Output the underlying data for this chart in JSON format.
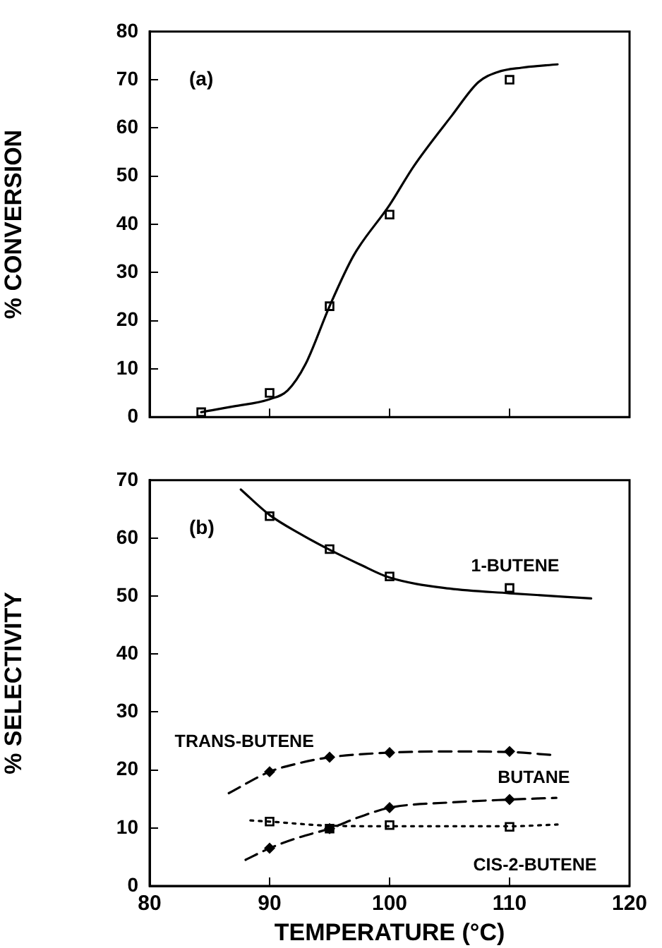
{
  "chart_data": [
    {
      "type": "line",
      "ylabel": "% CONVERSION",
      "annotations": [
        "(a)"
      ],
      "xlim": [
        80,
        120
      ],
      "xticks": [
        80,
        90,
        100,
        110,
        120
      ],
      "ylim": [
        0,
        80
      ],
      "yticks": [
        0,
        10,
        20,
        30,
        40,
        50,
        60,
        70,
        80
      ],
      "tick_labels": "y",
      "grid": false,
      "legend": false,
      "series": [
        {
          "type": "line",
          "color": "#000000",
          "line_style": "solid",
          "marker": "none",
          "x": [
            84.3,
            87,
            90,
            91.5,
            93,
            95,
            97,
            100,
            102,
            105.2,
            107.4,
            109,
            111,
            114
          ],
          "values": [
            1,
            2.2,
            3.7,
            5.5,
            11,
            23,
            33.5,
            44,
            52,
            62.6,
            69.5,
            71.6,
            72.5,
            73.2
          ]
        },
        {
          "type": "scatter",
          "color": "#000000",
          "marker": "square",
          "x": [
            84.3,
            90,
            95,
            100,
            110
          ],
          "values": [
            1,
            5,
            23,
            42,
            70
          ]
        }
      ]
    },
    {
      "type": "line",
      "xlabel": "TEMPERATURE (°C)",
      "ylabel": "% SELECTIVITY",
      "annotations": [
        "(b)"
      ],
      "xlim": [
        80,
        120
      ],
      "xticks": [
        80,
        90,
        100,
        110,
        120
      ],
      "ylim": [
        0,
        70
      ],
      "yticks": [
        0,
        10,
        20,
        30,
        40,
        50,
        60,
        70
      ],
      "grid": false,
      "legend": false,
      "series": [
        {
          "type": "line",
          "name": "1-BUTENE",
          "color": "#000000",
          "line_style": "solid",
          "marker": "none",
          "x": [
            87.6,
            90,
            92.5,
            95,
            97.5,
            100,
            105,
            110,
            116.8
          ],
          "values": [
            68.4,
            64,
            60.8,
            58,
            55.5,
            53.2,
            51.3,
            50.5,
            49.6
          ]
        },
        {
          "type": "scatter",
          "color": "#000000",
          "marker": "square",
          "x": [
            90,
            95,
            100,
            110
          ],
          "values": [
            63.8,
            58.1,
            53.4,
            51.4
          ]
        },
        {
          "type": "line",
          "name": "TRANS-BUTENE",
          "color": "#000000",
          "line_style": "dashed",
          "marker": "none",
          "x": [
            86.6,
            90,
            92.5,
            95,
            100,
            105,
            110,
            113.5
          ],
          "values": [
            16,
            19.7,
            21.2,
            22.2,
            23,
            23.2,
            23.1,
            22.6
          ]
        },
        {
          "type": "scatter",
          "color": "#000000",
          "marker": "diamond",
          "x": [
            90,
            95,
            100,
            110
          ],
          "values": [
            19.7,
            22.2,
            23,
            23.2
          ]
        },
        {
          "type": "line",
          "name": "BUTANE",
          "color": "#000000",
          "line_style": "dashed",
          "marker": "none",
          "x": [
            88,
            90,
            92.5,
            95,
            97.5,
            100,
            105,
            110,
            113.9
          ],
          "values": [
            4.5,
            6.5,
            8.4,
            9.9,
            11.9,
            13.5,
            14.4,
            14.9,
            15.2
          ]
        },
        {
          "type": "scatter",
          "color": "#000000",
          "marker": "diamond",
          "x": [
            90,
            95,
            100,
            110
          ],
          "values": [
            6.5,
            9.9,
            13.5,
            14.9
          ]
        },
        {
          "type": "line",
          "name": "CIS-2-BUTENE",
          "color": "#000000",
          "line_style": "dotted",
          "marker": "none",
          "x": [
            88.4,
            90,
            95,
            100,
            105,
            110,
            114
          ],
          "values": [
            11.3,
            11.1,
            10.4,
            10.3,
            10.3,
            10.3,
            10.6
          ]
        },
        {
          "type": "scatter",
          "color": "#000000",
          "marker": "square",
          "x": [
            90,
            95,
            100,
            110
          ],
          "values": [
            11.1,
            9.9,
            10.5,
            10.2
          ]
        }
      ]
    }
  ]
}
